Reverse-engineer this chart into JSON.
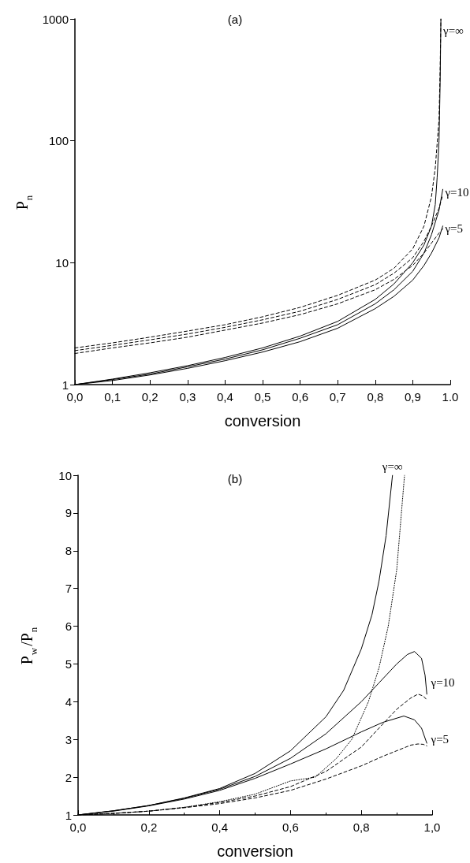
{
  "chart_data": [
    {
      "type": "line",
      "title": "(a)",
      "xlabel": "conversion",
      "ylabel": "P$_{n}$",
      "log": "y",
      "grid": false,
      "marker": "none",
      "xlim": [
        0,
        1.0
      ],
      "xticks": [
        {
          "value": 0,
          "label": "0,0"
        },
        {
          "value": 0.1,
          "label": "0,1"
        },
        {
          "value": 0.2,
          "label": "0,2"
        },
        {
          "value": 0.3,
          "label": "0,3"
        },
        {
          "value": 0.4,
          "label": "0,4"
        },
        {
          "value": 0.5,
          "label": "0,5"
        },
        {
          "value": 0.6,
          "label": "0,6"
        },
        {
          "value": 0.7,
          "label": "0,7"
        },
        {
          "value": 0.8,
          "label": "0,8"
        },
        {
          "value": 0.9,
          "label": "0,9"
        },
        {
          "value": 1.0,
          "label": "1.0"
        }
      ],
      "ylim": [
        1,
        1000
      ],
      "yticks": [
        1,
        10,
        100,
        1000
      ],
      "series": [
        {
          "color": "#000000",
          "line_style": "solid",
          "x": [
            0,
            0.1,
            0.2,
            0.3,
            0.4,
            0.5,
            0.6,
            0.7,
            0.8,
            0.85,
            0.9,
            0.93,
            0.95,
            0.96,
            0.965,
            0.97,
            0.973,
            0.975
          ],
          "values": [
            1,
            1.11,
            1.25,
            1.43,
            1.67,
            2,
            2.5,
            3.3,
            5,
            6.7,
            10,
            14,
            20,
            30,
            50,
            100,
            300,
            1000
          ]
        },
        {
          "color": "#000000",
          "line_style": "solid",
          "x": [
            0,
            0.1,
            0.2,
            0.3,
            0.4,
            0.5,
            0.6,
            0.7,
            0.8,
            0.85,
            0.9,
            0.93,
            0.95,
            0.97,
            0.98
          ],
          "values": [
            1,
            1.1,
            1.22,
            1.4,
            1.62,
            1.93,
            2.4,
            3.1,
            4.6,
            6,
            8.5,
            12,
            17,
            27,
            40
          ]
        },
        {
          "color": "#000000",
          "line_style": "solid",
          "x": [
            0,
            0.1,
            0.2,
            0.3,
            0.4,
            0.5,
            0.6,
            0.7,
            0.8,
            0.85,
            0.9,
            0.93,
            0.95,
            0.97,
            0.98
          ],
          "values": [
            1,
            1.08,
            1.2,
            1.36,
            1.57,
            1.85,
            2.25,
            2.9,
            4.2,
            5.3,
            7.2,
            9.5,
            12,
            16,
            20
          ]
        },
        {
          "color": "#000000",
          "line_style": "dashed",
          "x": [
            0,
            0.1,
            0.2,
            0.3,
            0.4,
            0.5,
            0.6,
            0.7,
            0.8,
            0.85,
            0.9,
            0.93,
            0.95,
            0.96,
            0.97,
            0.973,
            0.975
          ],
          "values": [
            2,
            2.2,
            2.45,
            2.75,
            3.1,
            3.6,
            4.3,
            5.4,
            7.2,
            9,
            13,
            20,
            35,
            60,
            150,
            400,
            1000
          ]
        },
        {
          "color": "#000000",
          "line_style": "dashed",
          "x": [
            0,
            0.1,
            0.2,
            0.3,
            0.4,
            0.5,
            0.6,
            0.7,
            0.8,
            0.85,
            0.9,
            0.93,
            0.95,
            0.97,
            0.98
          ],
          "values": [
            1.9,
            2.1,
            2.33,
            2.6,
            2.95,
            3.4,
            4.0,
            5.0,
            6.6,
            8.2,
            11,
            15,
            20,
            28,
            36
          ]
        },
        {
          "color": "#000000",
          "line_style": "dashed",
          "x": [
            0,
            0.1,
            0.2,
            0.3,
            0.4,
            0.5,
            0.6,
            0.7,
            0.8,
            0.85,
            0.9,
            0.93,
            0.95,
            0.97,
            0.98
          ],
          "values": [
            1.8,
            2.0,
            2.2,
            2.45,
            2.8,
            3.2,
            3.75,
            4.6,
            6.0,
            7.3,
            9.5,
            12,
            14.5,
            17.5,
            19
          ]
        }
      ],
      "annotations": [
        {
          "text": "γ=∞",
          "x": 0.975,
          "y": 800
        },
        {
          "text": "γ=10",
          "x": 0.98,
          "y": 38
        },
        {
          "text": "γ=5",
          "x": 0.98,
          "y": 19
        }
      ]
    },
    {
      "type": "line",
      "title": "(b)",
      "xlabel": "conversion",
      "ylabel": "P$_{w}$/P$_{n}$",
      "grid": false,
      "marker": "none",
      "xlim": [
        0,
        1.0
      ],
      "xticks": [
        {
          "value": 0,
          "label": "0,0"
        },
        {
          "value": 0.2,
          "label": "0,2"
        },
        {
          "value": 0.4,
          "label": "0,4"
        },
        {
          "value": 0.6,
          "label": "0,6"
        },
        {
          "value": 0.8,
          "label": "0,8"
        },
        {
          "value": 1.0,
          "label": "1,0"
        }
      ],
      "ylim": [
        1,
        10
      ],
      "yticks": [
        1,
        2,
        3,
        4,
        5,
        6,
        7,
        8,
        9,
        10
      ],
      "series": [
        {
          "color": "#000000",
          "line_style": "solid",
          "x": [
            0,
            0.1,
            0.2,
            0.3,
            0.4,
            0.5,
            0.6,
            0.7,
            0.75,
            0.8,
            0.83,
            0.85,
            0.87,
            0.888
          ],
          "values": [
            1,
            1.11,
            1.25,
            1.45,
            1.7,
            2.1,
            2.7,
            3.6,
            4.3,
            5.4,
            6.3,
            7.2,
            8.4,
            10
          ]
        },
        {
          "color": "#000000",
          "line_style": "solid",
          "x": [
            0,
            0.1,
            0.2,
            0.3,
            0.4,
            0.5,
            0.6,
            0.7,
            0.8,
            0.85,
            0.9,
            0.93,
            0.95,
            0.97,
            0.98,
            0.985
          ],
          "values": [
            1,
            1.11,
            1.25,
            1.44,
            1.68,
            2.02,
            2.5,
            3.15,
            4.0,
            4.5,
            5.0,
            5.25,
            5.33,
            5.15,
            4.7,
            4.2
          ]
        },
        {
          "color": "#000000",
          "line_style": "solid",
          "x": [
            0,
            0.1,
            0.2,
            0.3,
            0.4,
            0.5,
            0.6,
            0.7,
            0.8,
            0.86,
            0.92,
            0.95,
            0.97,
            0.985
          ],
          "values": [
            1,
            1.1,
            1.24,
            1.42,
            1.65,
            1.97,
            2.35,
            2.75,
            3.2,
            3.45,
            3.62,
            3.52,
            3.3,
            2.9
          ]
        },
        {
          "color": "#000000",
          "line_style": "dotted",
          "x": [
            0,
            0.1,
            0.2,
            0.3,
            0.4,
            0.5,
            0.6,
            0.67,
            0.73,
            0.773,
            0.82,
            0.85,
            0.876,
            0.9,
            0.922
          ],
          "values": [
            1,
            1.04,
            1.1,
            1.2,
            1.35,
            1.55,
            1.9,
            2.0,
            2.5,
            3.0,
            4.0,
            4.9,
            6.0,
            7.5,
            10
          ]
        },
        {
          "color": "#000000",
          "line_style": "dashed",
          "x": [
            0,
            0.1,
            0.2,
            0.3,
            0.4,
            0.5,
            0.6,
            0.7,
            0.8,
            0.86,
            0.9,
            0.94,
            0.96,
            0.975,
            0.985
          ],
          "values": [
            1,
            1.04,
            1.1,
            1.2,
            1.33,
            1.5,
            1.75,
            2.15,
            2.8,
            3.4,
            3.8,
            4.1,
            4.2,
            4.15,
            4.05
          ]
        },
        {
          "color": "#000000",
          "line_style": "dashed",
          "x": [
            0,
            0.1,
            0.2,
            0.3,
            0.4,
            0.5,
            0.6,
            0.7,
            0.8,
            0.86,
            0.9,
            0.94,
            0.96,
            0.975,
            0.985
          ],
          "values": [
            1,
            1.04,
            1.1,
            1.19,
            1.3,
            1.45,
            1.65,
            1.95,
            2.3,
            2.55,
            2.7,
            2.85,
            2.88,
            2.87,
            2.83
          ]
        }
      ],
      "annotations": [
        {
          "text": "γ=∞",
          "x": 0.888,
          "y": 10
        },
        {
          "text": "γ=10",
          "x": 0.99,
          "y": 4.5
        },
        {
          "text": "γ=5",
          "x": 0.99,
          "y": 3.0
        }
      ]
    }
  ]
}
